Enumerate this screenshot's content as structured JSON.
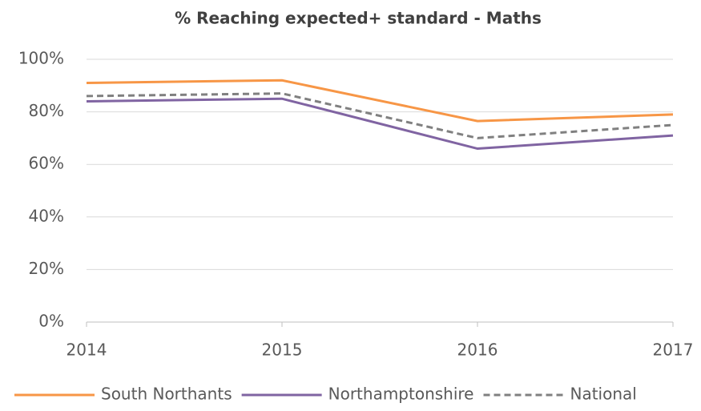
{
  "chart_data": {
    "type": "line",
    "title": "% Reaching expected+ standard - Maths",
    "x": [
      2014,
      2015,
      2016,
      2017
    ],
    "xlim": [
      2014,
      2017
    ],
    "xticks": [
      2014,
      2015,
      2016,
      2017
    ],
    "ylim": [
      0,
      100
    ],
    "yticks": [
      {
        "value": 0,
        "label": "0%"
      },
      {
        "value": 20,
        "label": "20%"
      },
      {
        "value": 40,
        "label": "40%"
      },
      {
        "value": 60,
        "label": "60%"
      },
      {
        "value": 80,
        "label": "80%"
      },
      {
        "value": 100,
        "label": "100%"
      }
    ],
    "grid": true,
    "legend": "bottom",
    "series": [
      {
        "name": "South Northants",
        "color": "#f79646",
        "dash": "solid",
        "values": [
          91,
          92,
          76.5,
          79
        ]
      },
      {
        "name": "Northamptonshire",
        "color": "#8064a2",
        "dash": "solid",
        "values": [
          84,
          85,
          66,
          71
        ]
      },
      {
        "name": "National",
        "color": "#808080",
        "dash": "dashed",
        "values": [
          86,
          87,
          70,
          75
        ]
      }
    ]
  }
}
